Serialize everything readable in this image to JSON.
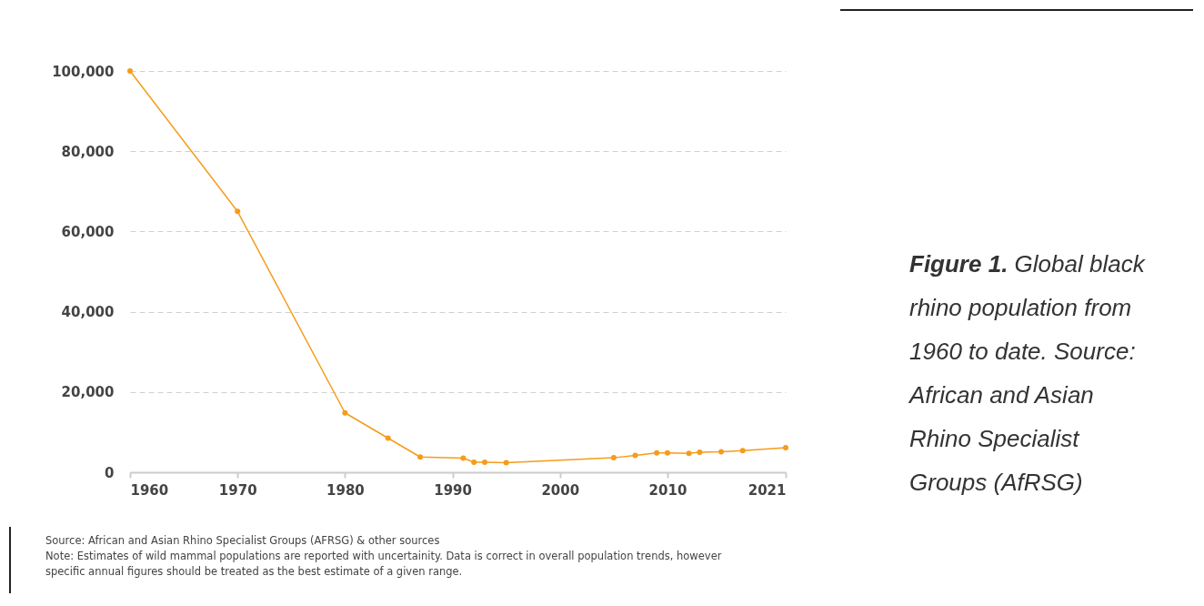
{
  "chart_data": {
    "type": "line",
    "title": "Figure 1.",
    "subtitle": "Global black rhino population from 1960 to date. Source: African and Asian Rhino Specialist Groups (AfRSG)",
    "x": [
      1960,
      1970,
      1980,
      1984,
      1987,
      1991,
      1992,
      1993,
      1995,
      2005,
      2007,
      2009,
      2010,
      2012,
      2013,
      2015,
      2017,
      2021
    ],
    "series": [
      {
        "color": "#f59c1a",
        "values": [
          100000,
          65000,
          14800,
          8500,
          3800,
          3500,
          2500,
          2500,
          2400,
          3600,
          4200,
          4800,
          4800,
          4700,
          5000,
          5100,
          5400,
          6100
        ]
      }
    ],
    "xlim": [
      1960,
      2021
    ],
    "xticks": [
      1960,
      1970,
      1980,
      1990,
      2000,
      2010,
      2021
    ],
    "ylim": [
      0,
      100000
    ],
    "yticks": [
      0,
      {
        "value": 20000,
        "label": "20,000"
      },
      {
        "value": 40000,
        "label": "40,000"
      },
      {
        "value": 60000,
        "label": "60,000"
      },
      {
        "value": 80000,
        "label": "80,000"
      },
      {
        "value": 100000,
        "label": "100,000"
      }
    ],
    "grid": "y",
    "marker": "circle",
    "line_style": "solid",
    "legend": false,
    "annotations": [
      "Source: African and Asian Rhino Specialist Groups (AFRSG) & other sources",
      "Note: Estimates of wild mammal populations are reported with uncertainity. Data is correct in overall population trends, however specific annual figures should be treated as the best estimate of a given range."
    ]
  }
}
